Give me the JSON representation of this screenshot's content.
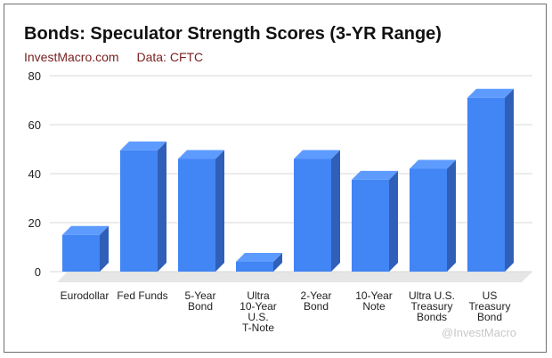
{
  "chart_data": {
    "type": "bar",
    "title": "Bonds: Speculator Strength Scores (3-YR Range)",
    "subtitle": [
      "InvestMacro.com",
      "Data: CFTC"
    ],
    "categories": [
      [
        "Eurodollar"
      ],
      [
        "Fed Funds"
      ],
      [
        "5-Year",
        "Bond"
      ],
      [
        "Ultra",
        "10-Year",
        "U.S.",
        "T-Note"
      ],
      [
        "2-Year",
        "Bond"
      ],
      [
        "10-Year",
        "Note"
      ],
      [
        "Ultra U.S.",
        "Treasury",
        "Bonds"
      ],
      [
        "US",
        "Treasury",
        "Bond"
      ]
    ],
    "values": [
      15,
      49.5,
      46,
      4,
      46,
      37.5,
      42,
      71
    ],
    "ylim": [
      0,
      80
    ],
    "yticks": [
      0,
      20,
      40,
      60,
      80
    ],
    "grid": true,
    "legend": "none",
    "colors": {
      "bar_front": "#4285f4",
      "bar_top": "#5e9bff",
      "bar_side": "#2f5fb8",
      "grid": "#d9d9d9",
      "axis_text": "#222222"
    }
  },
  "watermark": "@InvestMacro"
}
